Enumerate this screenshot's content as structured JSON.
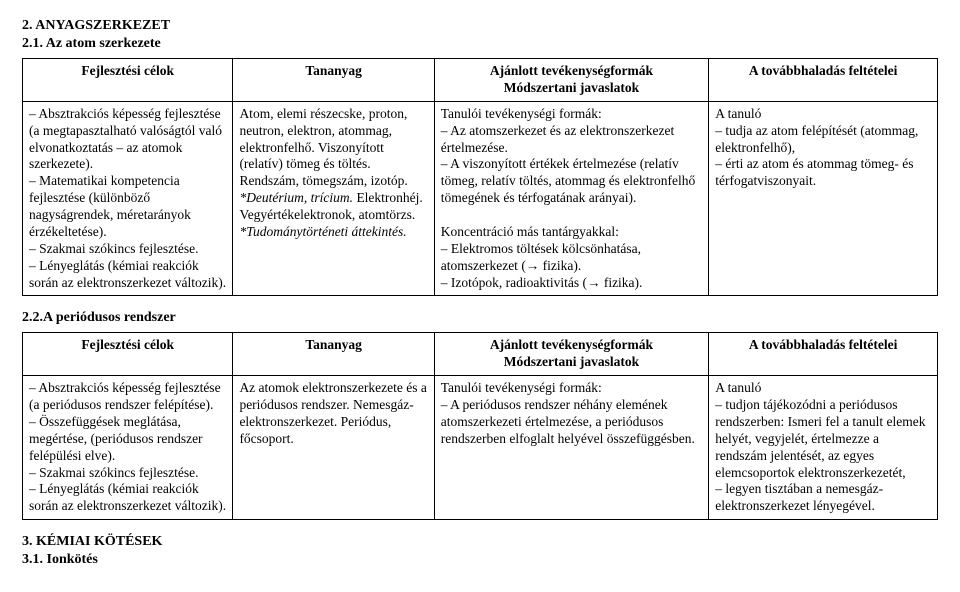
{
  "section1": {
    "heading": "2. ANYAGSZERKEZET",
    "subheading": "2.1. Az atom szerkezete"
  },
  "table1": {
    "headers": {
      "c1": "Fejlesztési célok",
      "c2": "Tananyag",
      "c3_line1": "Ajánlott tevékenységformák",
      "c3_line2": "Módszertani javaslatok",
      "c4": "A továbbhaladás feltételei"
    },
    "row": {
      "c1": "– Absztrakciós képesség fejlesztése (a megtapasztalható valóságtól való elvonatkoztatás – az atomok szerkezete).\n– Matematikai kompetencia fejlesztése (különböző nagyságrendek, méretarányok érzékeltetése).\n– Szakmai szókincs fejlesztése.\n– Lényeglátás (kémiai reakciók során az elektronszerkezet változik).",
      "c2_a": "Atom, elemi részecske, proton, neutron, elektron, atommag, elektronfelhő. Viszonyított (relatív) tömeg és töltés. Rendszám, tömegszám, izotóp. ",
      "c2_ital": "*Deutérium, trícium.",
      "c2_b": " Elektronhéj. Vegyértékelektronok, atomtörzs. ",
      "c2_ital2": "*Tudománytörténeti áttekintés.",
      "c3": "Tanulói tevékenységi formák:\n– Az atomszerkezet és az elektronszerkezet értelmezése.\n– A viszonyított értékek értelmezése (relatív tömeg, relatív töltés, atommag és elektronfelhő tömegének és térfogatának arányai).\n\nKoncentráció más tantárgyakkal:\n– Elektromos töltések kölcsönhatása, atomszerkezet (→ fizika).\n– Izotópok, radioaktivitás (→ fizika).",
      "c4": "A tanuló\n– tudja az atom felépítését (atommag, elektronfelhő),\n– érti az atom és atommag tömeg- és térfogatviszonyait."
    }
  },
  "section2": {
    "subheading": "2.2.A periódusos rendszer"
  },
  "table2": {
    "headers": {
      "c1": "Fejlesztési célok",
      "c2": "Tananyag",
      "c3_line1": "Ajánlott tevékenységformák",
      "c3_line2": "Módszertani javaslatok",
      "c4": "A továbbhaladás feltételei"
    },
    "row": {
      "c1": "– Absztrakciós képesség fejlesztése (a periódusos rendszer felépítése).\n– Összefüggések meglátása, megértése, (periódusos rendszer felépülési elve).\n– Szakmai szókincs fejlesztése.\n– Lényeglátás (kémiai reakciók során az elektronszerkezet változik).",
      "c2": "Az atomok elektronszerkezete és a periódusos rendszer. Nemesgáz-elektronszerkezet. Periódus, főcsoport.",
      "c3": "Tanulói tevékenységi formák:\n– A periódusos rendszer néhány elemének atomszerkezeti értelmezése, a periódusos rendszerben elfoglalt helyével összefüggésben.",
      "c4": "A tanuló\n– tudjon tájékozódni a periódusos rendszerben: Ismeri fel a tanult elemek helyét, vegyjelét, értelmezze a rendszám jelentését, az egyes elemcsoportok elektronszerkezetét,\n– legyen tisztában a nemesgáz-elektronszerkezet lényegével."
    }
  },
  "section3": {
    "heading": "3. KÉMIAI KÖTÉSEK",
    "subheading": "3.1. Ionkötés"
  }
}
